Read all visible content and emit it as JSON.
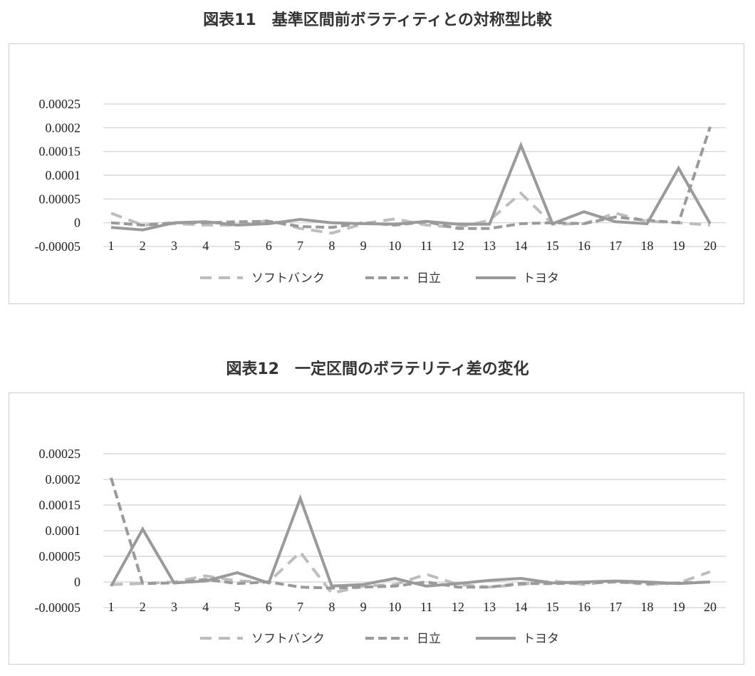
{
  "titles": {
    "chart1": "図表11　基準区間前ボラティティとの対称型比較",
    "chart2": "図表12　一定区間のボラテリティ差の変化"
  },
  "chart_data": [
    {
      "type": "line",
      "title": "図表11　基準区間前ボラティティとの対称型比較",
      "categories": [
        "1",
        "2",
        "3",
        "4",
        "5",
        "6",
        "7",
        "8",
        "9",
        "10",
        "11",
        "12",
        "13",
        "14",
        "15",
        "16",
        "17",
        "18",
        "19",
        "20"
      ],
      "y_ticks": [
        "0.00025",
        "0.0002",
        "0.00015",
        "0.0001",
        "0.00005",
        "0",
        "-0.00005"
      ],
      "ylim": [
        -5e-05,
        0.00025
      ],
      "grid": true,
      "legend_position": "bottom",
      "series": [
        {
          "name": "ソフトバンク",
          "style": "dashed-long",
          "color": "#bdbdbd",
          "values": [
            2e-05,
            -5e-06,
            -2e-06,
            -5e-06,
            -5e-06,
            5e-06,
            -1.2e-05,
            -2.2e-05,
            -2e-06,
            8e-06,
            -5e-06,
            -1e-05,
            5e-06,
            6.2e-05,
            -3e-06,
            -2e-06,
            2e-05,
            3e-06,
            0.0,
            -5e-06
          ]
        },
        {
          "name": "日立",
          "style": "dashed",
          "color": "#9a9a9a",
          "values": [
            0.0,
            -5e-06,
            0.0,
            0.0,
            2e-06,
            3e-06,
            -8e-06,
            -1e-05,
            0.0,
            -5e-06,
            2e-06,
            -1.2e-05,
            -1.2e-05,
            -2e-06,
            0.0,
            -2e-06,
            1.2e-05,
            5e-06,
            0.0,
            0.000202
          ]
        },
        {
          "name": "トヨタ",
          "style": "solid",
          "color": "#9a9a9a",
          "values": [
            -1e-05,
            -1.5e-05,
            0.0,
            2e-06,
            -5e-06,
            -2e-06,
            7e-06,
            0.0,
            -2e-06,
            -3e-06,
            3e-06,
            -3e-06,
            -3e-06,
            0.000163,
            -2e-06,
            2.3e-05,
            2e-06,
            -2e-06,
            0.000115,
            -2e-06
          ]
        }
      ]
    },
    {
      "type": "line",
      "title": "図表12　一定区間のボラテリティ差の変化",
      "categories": [
        "1",
        "2",
        "3",
        "4",
        "5",
        "6",
        "7",
        "8",
        "9",
        "10",
        "11",
        "12",
        "13",
        "14",
        "15",
        "16",
        "17",
        "18",
        "19",
        "20"
      ],
      "y_ticks": [
        "0.00025",
        "0.0002",
        "0.00015",
        "0.0001",
        "0.00005",
        "0",
        "-0.00005"
      ],
      "ylim": [
        -5e-05,
        0.00025
      ],
      "grid": true,
      "legend_position": "bottom",
      "series": [
        {
          "name": "ソフトバンク",
          "style": "dashed-long",
          "color": "#bdbdbd",
          "values": [
            -5e-06,
            -3e-06,
            0.0,
            1.2e-05,
            2e-06,
            0.0,
            5.8e-05,
            -2.2e-05,
            -8e-06,
            -5e-06,
            1.5e-05,
            -5e-06,
            -1e-05,
            -5e-06,
            2e-06,
            -5e-06,
            2e-06,
            -5e-06,
            -2e-06,
            2e-05
          ]
        },
        {
          "name": "日立",
          "style": "dashed",
          "color": "#9a9a9a",
          "values": [
            0.000203,
            -3e-06,
            -2e-06,
            5e-06,
            -3e-06,
            0.0,
            -1e-05,
            -1.2e-05,
            -1e-05,
            -8e-06,
            0.0,
            -1e-05,
            -1e-05,
            -3e-06,
            -3e-06,
            -2e-06,
            0.0,
            -3e-06,
            -2e-06,
            0.0
          ]
        },
        {
          "name": "トヨタ",
          "style": "solid",
          "color": "#9a9a9a",
          "values": [
            -8e-06,
            0.000103,
            -2e-06,
            2e-06,
            1.8e-05,
            -2e-06,
            0.000163,
            -8e-06,
            -5e-06,
            7e-06,
            -8e-06,
            -3e-06,
            3e-06,
            7e-06,
            -2e-06,
            0.0,
            2e-06,
            0.0,
            -3e-06,
            0.0
          ]
        }
      ]
    }
  ]
}
